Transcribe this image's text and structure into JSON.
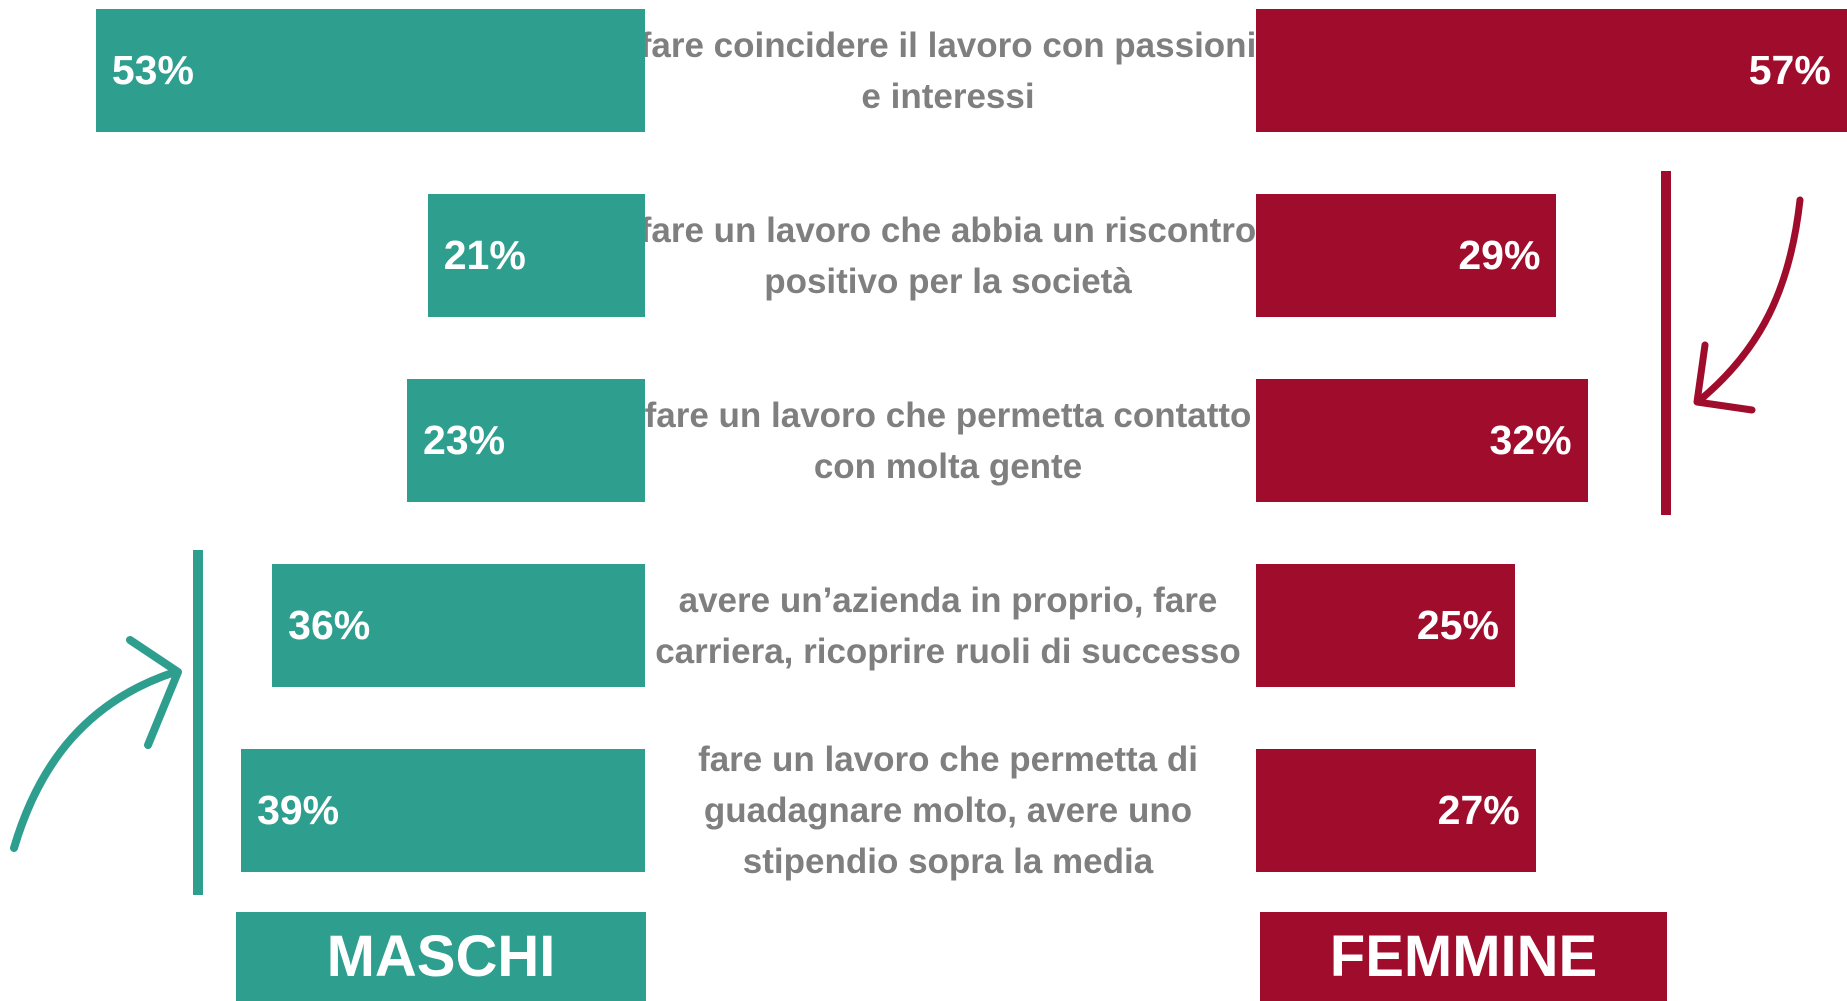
{
  "chart_data": {
    "type": "butterfly",
    "categories": [
      "fare coincidere il lavoro con passioni e interessi",
      "fare un lavoro che abbia un riscontro positivo per la società",
      "fare un lavoro che permetta contatto con molta gente",
      "avere un’azienda in proprio, fare carriera, ricoprire ruoli di successo",
      "fare un lavoro che permetta di guadagnare molto, avere uno stipendio sopra la media"
    ],
    "series": [
      {
        "name": "MASCHI",
        "color": "#2e9e8e",
        "values": [
          53,
          21,
          23,
          36,
          39
        ],
        "value_labels": [
          "53%",
          "21%",
          "23%",
          "36%",
          "39%"
        ]
      },
      {
        "name": "FEMMINE",
        "color": "#a00c2c",
        "values": [
          57,
          29,
          32,
          25,
          27
        ],
        "value_labels": [
          "57%",
          "29%",
          "32%",
          "25%",
          "27%"
        ]
      }
    ]
  }
}
